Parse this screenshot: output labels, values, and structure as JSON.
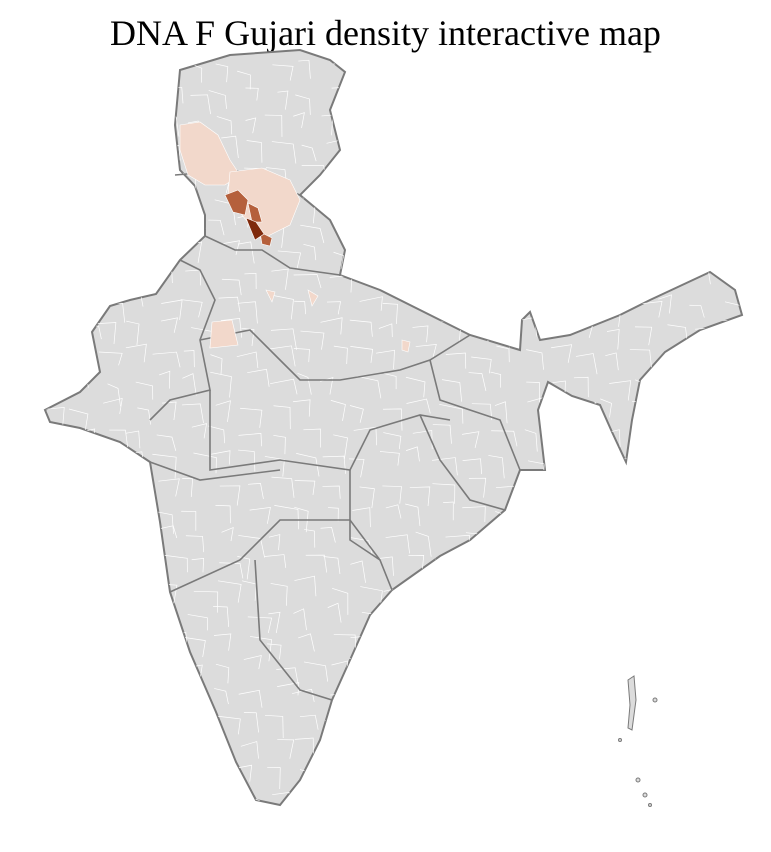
{
  "title": "DNA F Gujari density interactive map",
  "colors": {
    "land": "#dcdcdc",
    "border": "#7a7a7a",
    "district_lines": "#ffffff",
    "density_low": "#f2d8cb",
    "density_mid": "#b5603c",
    "density_high": "#7f2a0c"
  }
}
